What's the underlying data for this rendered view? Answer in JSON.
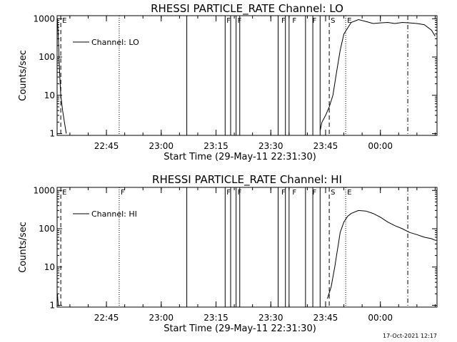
{
  "chart_data": [
    {
      "type": "line",
      "title": "RHESSI PARTICLE_RATE Channel: LO",
      "xlabel": "Start Time (29-May-11 22:31:30)",
      "ylabel": "Counts/sec",
      "yscale": "log",
      "ylim": [
        0.9,
        1200
      ],
      "xlim": [
        "22:31:30",
        "00:15:30"
      ],
      "x_ticks": [
        "22:45",
        "23:00",
        "23:15",
        "23:30",
        "23:45",
        "00:00"
      ],
      "y_ticks": [
        "1",
        "10",
        "100",
        "1000"
      ],
      "legend": {
        "position": "top-left",
        "entries": [
          "Channel: LO"
        ]
      },
      "series": [
        {
          "name": "Channel: LO",
          "segments": [
            {
              "x": [
                "22:31:35",
                "22:31:45",
                "22:32:00",
                "22:32:15",
                "22:32:30",
                "22:33:00",
                "22:33:30",
                "22:34:00"
              ],
              "y": [
                1000,
                500,
                100,
                30,
                10,
                4,
                2,
                1
              ]
            },
            {
              "x": [
                "23:43:30",
                "23:44:00",
                "23:45:00",
                "23:46:00",
                "23:47:00",
                "23:48:00",
                "23:49:00",
                "23:50:00",
                "23:52:00",
                "23:54:00",
                "23:56:00",
                "23:58:00",
                "00:00:00",
                "00:02:00",
                "00:04:00",
                "00:06:00",
                "00:08:00",
                "00:10:00",
                "00:12:00",
                "00:14:00",
                "00:15:00"
              ],
              "y": [
                1.2,
                2,
                3,
                5,
                10,
                40,
                150,
                400,
                800,
                950,
                850,
                750,
                780,
                800,
                750,
                800,
                780,
                750,
                700,
                500,
                350
              ]
            }
          ]
        }
      ],
      "flags": [
        {
          "label": "E",
          "time": "22:32:30"
        },
        {
          "label": "F",
          "time": "23:17:30"
        },
        {
          "label": "F",
          "time": "23:20:30"
        },
        {
          "label": "F",
          "time": "23:32:30"
        },
        {
          "label": "F",
          "time": "23:35:30"
        },
        {
          "label": "F",
          "time": "23:41:00"
        },
        {
          "label": "S",
          "time": "23:46:00"
        },
        {
          "label": "E",
          "time": "23:50:30"
        }
      ],
      "vlines": [
        {
          "time": "22:32:30",
          "style": "dash"
        },
        {
          "time": "22:48:30",
          "style": "dot"
        },
        {
          "time": "23:07:00",
          "style": "solid"
        },
        {
          "time": "23:17:30",
          "style": "solid"
        },
        {
          "time": "23:19:00",
          "style": "solid"
        },
        {
          "time": "23:20:30",
          "style": "solid"
        },
        {
          "time": "23:21:30",
          "style": "solid"
        },
        {
          "time": "23:32:00",
          "style": "solid"
        },
        {
          "time": "23:34:00",
          "style": "solid"
        },
        {
          "time": "23:35:00",
          "style": "solid"
        },
        {
          "time": "23:39:30",
          "style": "solid"
        },
        {
          "time": "23:41:30",
          "style": "solid"
        },
        {
          "time": "23:43:30",
          "style": "solid"
        },
        {
          "time": "23:46:00",
          "style": "dash"
        },
        {
          "time": "23:50:30",
          "style": "dot"
        },
        {
          "time": "00:07:30",
          "style": "dashdot"
        }
      ]
    },
    {
      "type": "line",
      "title": "RHESSI PARTICLE_RATE Channel: HI",
      "xlabel": "Start Time (29-May-11 22:31:30)",
      "ylabel": "Counts/sec",
      "yscale": "log",
      "ylim": [
        0.9,
        1200
      ],
      "xlim": [
        "22:31:30",
        "00:15:30"
      ],
      "x_ticks": [
        "22:45",
        "23:00",
        "23:15",
        "23:30",
        "23:45",
        "00:00"
      ],
      "y_ticks": [
        "1",
        "10",
        "100",
        "1000"
      ],
      "legend": {
        "position": "top-left",
        "entries": [
          "Channel: HI"
        ]
      },
      "series": [
        {
          "name": "Channel: HI",
          "segments": [
            {
              "x": [
                "22:31:35",
                "22:31:40",
                "22:31:50",
                "22:32:00"
              ],
              "y": [
                2,
                1.5,
                1,
                0.95
              ]
            },
            {
              "x": [
                "23:45:30",
                "23:46:30",
                "23:47:30",
                "23:48:00",
                "23:48:30",
                "23:49:00",
                "23:50:00",
                "23:51:00",
                "23:52:00",
                "23:54:00",
                "23:56:00",
                "23:58:00",
                "00:00:00",
                "00:02:00",
                "00:04:00",
                "00:06:00",
                "00:08:00",
                "00:10:00",
                "00:12:00",
                "00:14:00",
                "00:15:00"
              ],
              "y": [
                1.5,
                3,
                10,
                20,
                40,
                80,
                150,
                210,
                250,
                300,
                290,
                250,
                200,
                150,
                120,
                100,
                80,
                70,
                60,
                55,
                50
              ]
            }
          ]
        }
      ],
      "flags": [
        {
          "label": "E",
          "time": "22:32:30"
        },
        {
          "label": "F",
          "time": "22:48:30"
        },
        {
          "label": "F",
          "time": "23:17:30"
        },
        {
          "label": "F",
          "time": "23:20:30"
        },
        {
          "label": "F",
          "time": "23:32:30"
        },
        {
          "label": "F",
          "time": "23:35:30"
        },
        {
          "label": "F",
          "time": "23:41:00"
        },
        {
          "label": "S",
          "time": "23:46:00"
        },
        {
          "label": "E",
          "time": "23:50:30"
        }
      ],
      "vlines": [
        {
          "time": "22:32:30",
          "style": "dash"
        },
        {
          "time": "22:48:30",
          "style": "dot"
        },
        {
          "time": "23:07:00",
          "style": "solid"
        },
        {
          "time": "23:17:30",
          "style": "solid"
        },
        {
          "time": "23:19:00",
          "style": "solid"
        },
        {
          "time": "23:20:30",
          "style": "solid"
        },
        {
          "time": "23:21:30",
          "style": "solid"
        },
        {
          "time": "23:32:00",
          "style": "solid"
        },
        {
          "time": "23:34:00",
          "style": "solid"
        },
        {
          "time": "23:35:00",
          "style": "solid"
        },
        {
          "time": "23:39:30",
          "style": "solid"
        },
        {
          "time": "23:41:30",
          "style": "solid"
        },
        {
          "time": "23:43:30",
          "style": "solid"
        },
        {
          "time": "23:46:00",
          "style": "dash"
        },
        {
          "time": "23:50:30",
          "style": "dot"
        },
        {
          "time": "00:07:30",
          "style": "dashdot"
        }
      ]
    }
  ],
  "footer": {
    "timestamp": "17-Oct-2021 12:17"
  }
}
